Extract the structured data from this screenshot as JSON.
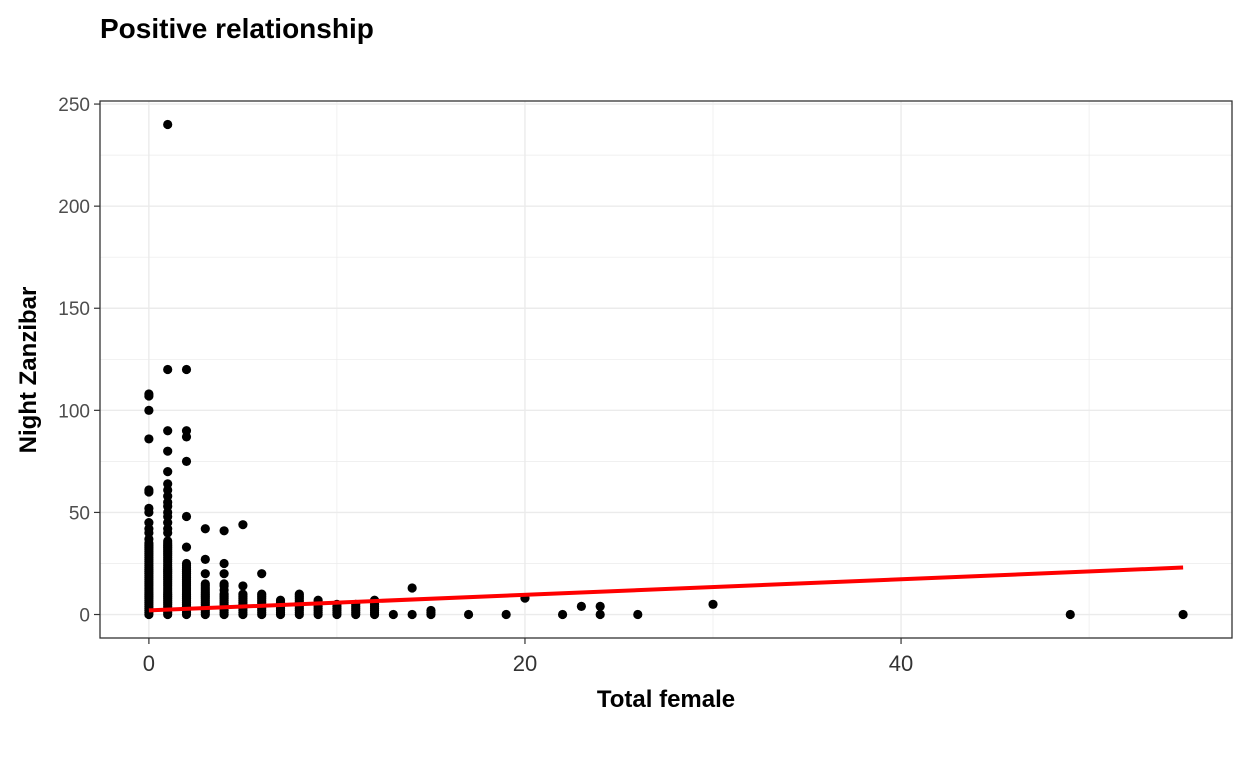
{
  "chart_data": {
    "type": "scatter",
    "title": "Positive relationship",
    "xlabel": "Total female",
    "ylabel": "Night Zanzibar",
    "xlim": [
      -2.6,
      57.6
    ],
    "ylim": [
      -11.5,
      251.5
    ],
    "x_ticks": [
      0,
      20,
      40
    ],
    "y_ticks": [
      0,
      50,
      100,
      150,
      200,
      250
    ],
    "x_tick_labels": [
      "0",
      "20",
      "40"
    ],
    "y_tick_labels": [
      "0",
      "50",
      "100",
      "150",
      "200",
      "250"
    ],
    "grid": true,
    "legend": "none",
    "colors": {
      "points": "#000000",
      "trend": "#ff0000",
      "grid": "#ebebeb",
      "border": "#333333"
    },
    "points": [
      [
        0,
        0
      ],
      [
        0,
        1
      ],
      [
        0,
        2
      ],
      [
        0,
        3
      ],
      [
        0,
        4
      ],
      [
        0,
        5
      ],
      [
        0,
        6
      ],
      [
        0,
        7
      ],
      [
        0,
        8
      ],
      [
        0,
        9
      ],
      [
        0,
        10
      ],
      [
        0,
        11
      ],
      [
        0,
        12
      ],
      [
        0,
        13
      ],
      [
        0,
        14
      ],
      [
        0,
        15
      ],
      [
        0,
        16
      ],
      [
        0,
        17
      ],
      [
        0,
        18
      ],
      [
        0,
        19
      ],
      [
        0,
        20
      ],
      [
        0,
        21
      ],
      [
        0,
        22
      ],
      [
        0,
        23
      ],
      [
        0,
        24
      ],
      [
        0,
        25
      ],
      [
        0,
        26
      ],
      [
        0,
        27
      ],
      [
        0,
        28
      ],
      [
        0,
        29
      ],
      [
        0,
        30
      ],
      [
        0,
        31
      ],
      [
        0,
        32
      ],
      [
        0,
        33
      ],
      [
        0,
        34
      ],
      [
        0,
        35
      ],
      [
        0,
        37
      ],
      [
        0,
        40
      ],
      [
        0,
        42
      ],
      [
        0,
        45
      ],
      [
        0,
        50
      ],
      [
        0,
        52
      ],
      [
        0,
        60
      ],
      [
        0,
        61
      ],
      [
        0,
        86
      ],
      [
        0,
        100
      ],
      [
        0,
        107
      ],
      [
        0,
        108
      ],
      [
        1,
        0
      ],
      [
        1,
        1
      ],
      [
        1,
        2
      ],
      [
        1,
        3
      ],
      [
        1,
        4
      ],
      [
        1,
        5
      ],
      [
        1,
        6
      ],
      [
        1,
        7
      ],
      [
        1,
        8
      ],
      [
        1,
        9
      ],
      [
        1,
        10
      ],
      [
        1,
        11
      ],
      [
        1,
        12
      ],
      [
        1,
        13
      ],
      [
        1,
        14
      ],
      [
        1,
        15
      ],
      [
        1,
        16
      ],
      [
        1,
        17
      ],
      [
        1,
        18
      ],
      [
        1,
        19
      ],
      [
        1,
        20
      ],
      [
        1,
        21
      ],
      [
        1,
        22
      ],
      [
        1,
        23
      ],
      [
        1,
        24
      ],
      [
        1,
        25
      ],
      [
        1,
        26
      ],
      [
        1,
        27
      ],
      [
        1,
        28
      ],
      [
        1,
        29
      ],
      [
        1,
        30
      ],
      [
        1,
        31
      ],
      [
        1,
        32
      ],
      [
        1,
        33
      ],
      [
        1,
        34
      ],
      [
        1,
        35
      ],
      [
        1,
        36
      ],
      [
        1,
        40
      ],
      [
        1,
        42
      ],
      [
        1,
        45
      ],
      [
        1,
        48
      ],
      [
        1,
        50
      ],
      [
        1,
        53
      ],
      [
        1,
        55
      ],
      [
        1,
        58
      ],
      [
        1,
        61
      ],
      [
        1,
        64
      ],
      [
        1,
        70
      ],
      [
        1,
        80
      ],
      [
        1,
        90
      ],
      [
        1,
        120
      ],
      [
        1,
        240
      ],
      [
        2,
        0
      ],
      [
        2,
        1
      ],
      [
        2,
        2
      ],
      [
        2,
        3
      ],
      [
        2,
        4
      ],
      [
        2,
        5
      ],
      [
        2,
        6
      ],
      [
        2,
        7
      ],
      [
        2,
        8
      ],
      [
        2,
        9
      ],
      [
        2,
        10
      ],
      [
        2,
        11
      ],
      [
        2,
        12
      ],
      [
        2,
        13
      ],
      [
        2,
        14
      ],
      [
        2,
        15
      ],
      [
        2,
        16
      ],
      [
        2,
        17
      ],
      [
        2,
        18
      ],
      [
        2,
        19
      ],
      [
        2,
        20
      ],
      [
        2,
        21
      ],
      [
        2,
        22
      ],
      [
        2,
        23
      ],
      [
        2,
        24
      ],
      [
        2,
        25
      ],
      [
        2,
        33
      ],
      [
        2,
        48
      ],
      [
        2,
        75
      ],
      [
        2,
        87
      ],
      [
        2,
        90
      ],
      [
        2,
        120
      ],
      [
        3,
        0
      ],
      [
        3,
        1
      ],
      [
        3,
        2
      ],
      [
        3,
        3
      ],
      [
        3,
        4
      ],
      [
        3,
        5
      ],
      [
        3,
        6
      ],
      [
        3,
        7
      ],
      [
        3,
        8
      ],
      [
        3,
        9
      ],
      [
        3,
        10
      ],
      [
        3,
        11
      ],
      [
        3,
        12
      ],
      [
        3,
        13
      ],
      [
        3,
        14
      ],
      [
        3,
        15
      ],
      [
        3,
        20
      ],
      [
        3,
        27
      ],
      [
        3,
        42
      ],
      [
        4,
        0
      ],
      [
        4,
        1
      ],
      [
        4,
        2
      ],
      [
        4,
        3
      ],
      [
        4,
        4
      ],
      [
        4,
        5
      ],
      [
        4,
        6
      ],
      [
        4,
        7
      ],
      [
        4,
        8
      ],
      [
        4,
        9
      ],
      [
        4,
        10
      ],
      [
        4,
        12
      ],
      [
        4,
        14
      ],
      [
        4,
        15
      ],
      [
        4,
        20
      ],
      [
        4,
        25
      ],
      [
        4,
        41
      ],
      [
        5,
        0
      ],
      [
        5,
        1
      ],
      [
        5,
        2
      ],
      [
        5,
        3
      ],
      [
        5,
        4
      ],
      [
        5,
        5
      ],
      [
        5,
        6
      ],
      [
        5,
        7
      ],
      [
        5,
        8
      ],
      [
        5,
        9
      ],
      [
        5,
        10
      ],
      [
        5,
        14
      ],
      [
        5,
        44
      ],
      [
        6,
        0
      ],
      [
        6,
        1
      ],
      [
        6,
        2
      ],
      [
        6,
        3
      ],
      [
        6,
        4
      ],
      [
        6,
        5
      ],
      [
        6,
        6
      ],
      [
        6,
        7
      ],
      [
        6,
        8
      ],
      [
        6,
        9
      ],
      [
        6,
        10
      ],
      [
        6,
        20
      ],
      [
        7,
        0
      ],
      [
        7,
        1
      ],
      [
        7,
        2
      ],
      [
        7,
        3
      ],
      [
        7,
        4
      ],
      [
        7,
        5
      ],
      [
        7,
        6
      ],
      [
        7,
        7
      ],
      [
        8,
        0
      ],
      [
        8,
        1
      ],
      [
        8,
        2
      ],
      [
        8,
        3
      ],
      [
        8,
        4
      ],
      [
        8,
        5
      ],
      [
        8,
        6
      ],
      [
        8,
        7
      ],
      [
        8,
        8
      ],
      [
        8,
        9
      ],
      [
        8,
        10
      ],
      [
        9,
        0
      ],
      [
        9,
        1
      ],
      [
        9,
        2
      ],
      [
        9,
        3
      ],
      [
        9,
        4
      ],
      [
        9,
        5
      ],
      [
        9,
        6
      ],
      [
        9,
        7
      ],
      [
        10,
        0
      ],
      [
        10,
        1
      ],
      [
        10,
        2
      ],
      [
        10,
        3
      ],
      [
        10,
        4
      ],
      [
        10,
        5
      ],
      [
        11,
        0
      ],
      [
        11,
        1
      ],
      [
        11,
        2
      ],
      [
        11,
        3
      ],
      [
        11,
        4
      ],
      [
        11,
        5
      ],
      [
        12,
        0
      ],
      [
        12,
        1
      ],
      [
        12,
        2
      ],
      [
        12,
        3
      ],
      [
        12,
        4
      ],
      [
        12,
        5
      ],
      [
        12,
        6
      ],
      [
        12,
        7
      ],
      [
        13,
        0
      ],
      [
        14,
        0
      ],
      [
        14,
        13
      ],
      [
        15,
        0
      ],
      [
        15,
        1
      ],
      [
        15,
        2
      ],
      [
        17,
        0
      ],
      [
        19,
        0
      ],
      [
        20,
        8
      ],
      [
        22,
        0
      ],
      [
        23,
        4
      ],
      [
        24,
        0
      ],
      [
        24,
        4
      ],
      [
        26,
        0
      ],
      [
        30,
        5
      ],
      [
        49,
        0
      ],
      [
        55,
        0
      ]
    ],
    "trend_line": {
      "x": [
        0,
        55
      ],
      "y": [
        2.0,
        23.0
      ]
    }
  }
}
